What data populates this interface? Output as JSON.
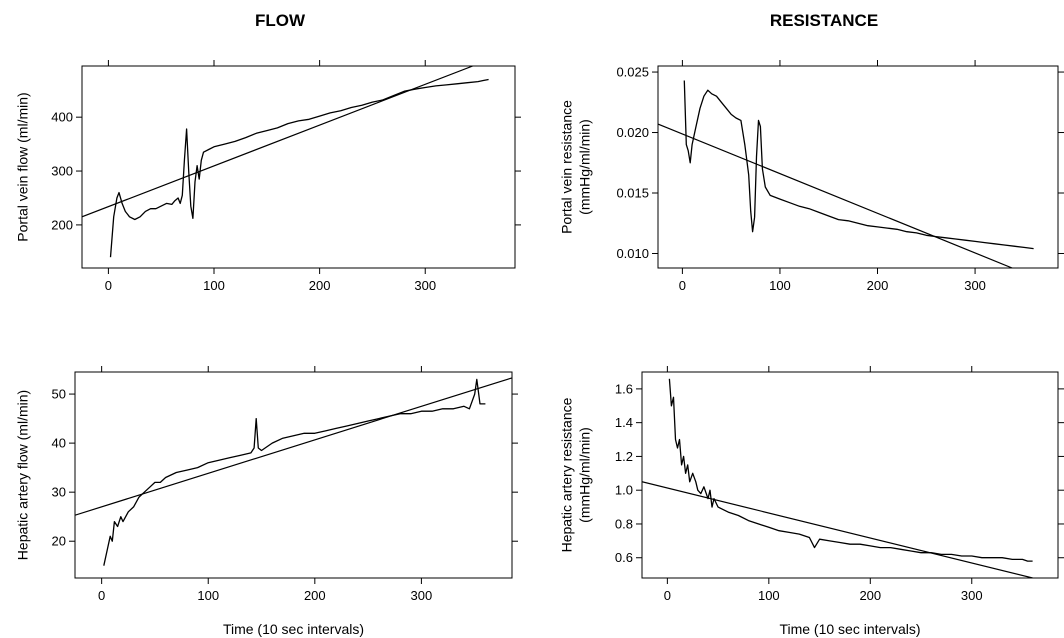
{
  "figure": {
    "column_titles": [
      "FLOW",
      "RESISTANCE"
    ]
  },
  "chart_data": [
    {
      "type": "line",
      "ylabel": [
        "Portal vein flow (ml/min)"
      ],
      "xlabel": "",
      "xlim": [
        -25,
        385
      ],
      "ylim": [
        120,
        495
      ],
      "xticks": [
        0,
        100,
        200,
        300
      ],
      "yticks": [
        200,
        300,
        400
      ],
      "ytick_labels": [
        "200",
        "300",
        "400"
      ],
      "grid": false,
      "series": [
        {
          "x": [
            2,
            5,
            8,
            10,
            13,
            16,
            20,
            25,
            30,
            35,
            40,
            45,
            50,
            55,
            60,
            63,
            66,
            68,
            70,
            72,
            74,
            76,
            78,
            80,
            82,
            84,
            86,
            88,
            90,
            95,
            100,
            110,
            120,
            130,
            140,
            150,
            160,
            170,
            180,
            190,
            200,
            210,
            220,
            230,
            240,
            250,
            260,
            270,
            280,
            290,
            300,
            310,
            320,
            330,
            340,
            350,
            355,
            360
          ],
          "y": [
            140,
            215,
            250,
            260,
            240,
            225,
            215,
            210,
            215,
            225,
            230,
            230,
            235,
            240,
            238,
            245,
            250,
            240,
            255,
            320,
            378,
            300,
            235,
            212,
            280,
            310,
            285,
            320,
            335,
            340,
            345,
            350,
            355,
            362,
            370,
            375,
            380,
            388,
            393,
            396,
            402,
            408,
            412,
            418,
            422,
            428,
            432,
            440,
            448,
            452,
            455,
            458,
            460,
            462,
            464,
            466,
            468,
            470
          ]
        },
        {
          "x": [
            -25,
            345
          ],
          "y": [
            215,
            495
          ]
        }
      ]
    },
    {
      "type": "line",
      "ylabel": [
        "Portal vein resistance",
        "(mmHg/ml/min)"
      ],
      "xlabel": "",
      "xlim": [
        -25,
        385
      ],
      "ylim": [
        0.0088,
        0.0255
      ],
      "xticks": [
        0,
        100,
        200,
        300
      ],
      "yticks": [
        0.01,
        0.015,
        0.02,
        0.025
      ],
      "ytick_labels": [
        "0.010",
        "0.015",
        "0.020",
        "0.025"
      ],
      "grid": false,
      "series": [
        {
          "x": [
            2,
            4,
            6,
            8,
            10,
            14,
            18,
            22,
            26,
            30,
            35,
            40,
            45,
            50,
            55,
            60,
            64,
            68,
            70,
            72,
            74,
            76,
            78,
            80,
            82,
            85,
            90,
            100,
            110,
            120,
            130,
            140,
            150,
            160,
            170,
            180,
            190,
            200,
            210,
            220,
            230,
            240,
            250,
            260,
            270,
            280,
            290,
            300,
            310,
            320,
            330,
            340,
            350,
            360
          ],
          "y": [
            0.0243,
            0.019,
            0.0185,
            0.0175,
            0.019,
            0.0205,
            0.022,
            0.023,
            0.0235,
            0.0232,
            0.023,
            0.0225,
            0.022,
            0.0215,
            0.0212,
            0.021,
            0.019,
            0.0165,
            0.0135,
            0.0118,
            0.013,
            0.018,
            0.021,
            0.0205,
            0.017,
            0.0155,
            0.0148,
            0.0145,
            0.0142,
            0.0139,
            0.0137,
            0.0134,
            0.0131,
            0.0128,
            0.0127,
            0.0125,
            0.0123,
            0.0122,
            0.0121,
            0.012,
            0.0118,
            0.0117,
            0.0115,
            0.0114,
            0.0113,
            0.0112,
            0.0111,
            0.011,
            0.0109,
            0.0108,
            0.0107,
            0.0106,
            0.0105,
            0.0104
          ]
        },
        {
          "x": [
            -25,
            338
          ],
          "y": [
            0.0207,
            0.0088
          ]
        }
      ]
    },
    {
      "type": "line",
      "ylabel": [
        "Hepatic artery flow (ml/min)"
      ],
      "xlabel": "Time (10 sec intervals)",
      "xlim": [
        -25,
        385
      ],
      "ylim": [
        12.5,
        54.5
      ],
      "xticks": [
        0,
        100,
        200,
        300
      ],
      "yticks": [
        20,
        30,
        40,
        50
      ],
      "ytick_labels": [
        "20",
        "30",
        "40",
        "50"
      ],
      "grid": false,
      "series": [
        {
          "x": [
            2,
            5,
            8,
            10,
            12,
            15,
            18,
            20,
            25,
            30,
            35,
            40,
            45,
            50,
            55,
            60,
            70,
            80,
            90,
            100,
            110,
            120,
            130,
            140,
            143,
            145,
            147,
            150,
            160,
            170,
            180,
            190,
            200,
            210,
            220,
            230,
            240,
            250,
            260,
            270,
            280,
            290,
            300,
            310,
            320,
            330,
            340,
            345,
            350,
            352,
            355,
            360
          ],
          "y": [
            15,
            18,
            21,
            20,
            24,
            23,
            25,
            24,
            26,
            27,
            29,
            30,
            31,
            32,
            32,
            33,
            34,
            34.5,
            35,
            36,
            36.5,
            37,
            37.5,
            38,
            39,
            45,
            39,
            38.5,
            40,
            41,
            41.5,
            42,
            42,
            42.5,
            43,
            43.5,
            44,
            44.5,
            45,
            45.5,
            46,
            46,
            46.5,
            46.5,
            47,
            47,
            47.5,
            47,
            50,
            53,
            48,
            48
          ]
        },
        {
          "x": [
            -25,
            385
          ],
          "y": [
            25.3,
            53.3
          ]
        }
      ]
    },
    {
      "type": "line",
      "ylabel": [
        "Hepatic artery resistance",
        "(mmHg/ml/min)"
      ],
      "xlabel": "Time (10 sec intervals)",
      "xlim": [
        -25,
        385
      ],
      "ylim": [
        0.48,
        1.7
      ],
      "xticks": [
        0,
        100,
        200,
        300
      ],
      "yticks": [
        0.6,
        0.8,
        1.0,
        1.2,
        1.4,
        1.6
      ],
      "ytick_labels": [
        "0.6",
        "0.8",
        "1.0",
        "1.2",
        "1.4",
        "1.6"
      ],
      "grid": false,
      "series": [
        {
          "x": [
            2,
            4,
            6,
            8,
            10,
            12,
            14,
            16,
            18,
            20,
            22,
            25,
            28,
            30,
            33,
            36,
            40,
            42,
            44,
            46,
            50,
            60,
            70,
            80,
            90,
            100,
            110,
            120,
            130,
            140,
            145,
            150,
            160,
            170,
            180,
            190,
            200,
            210,
            220,
            230,
            240,
            250,
            260,
            270,
            280,
            290,
            300,
            310,
            320,
            330,
            340,
            350,
            355,
            360
          ],
          "y": [
            1.66,
            1.5,
            1.55,
            1.3,
            1.25,
            1.3,
            1.15,
            1.2,
            1.1,
            1.15,
            1.05,
            1.1,
            1.05,
            1.0,
            0.98,
            1.02,
            0.95,
            1.0,
            0.9,
            0.95,
            0.9,
            0.87,
            0.85,
            0.82,
            0.8,
            0.78,
            0.76,
            0.75,
            0.74,
            0.72,
            0.66,
            0.71,
            0.7,
            0.69,
            0.68,
            0.68,
            0.67,
            0.66,
            0.66,
            0.65,
            0.64,
            0.63,
            0.63,
            0.62,
            0.62,
            0.61,
            0.61,
            0.6,
            0.6,
            0.6,
            0.59,
            0.59,
            0.58,
            0.58
          ]
        },
        {
          "x": [
            -25,
            360
          ],
          "y": [
            1.05,
            0.48
          ]
        }
      ]
    }
  ]
}
